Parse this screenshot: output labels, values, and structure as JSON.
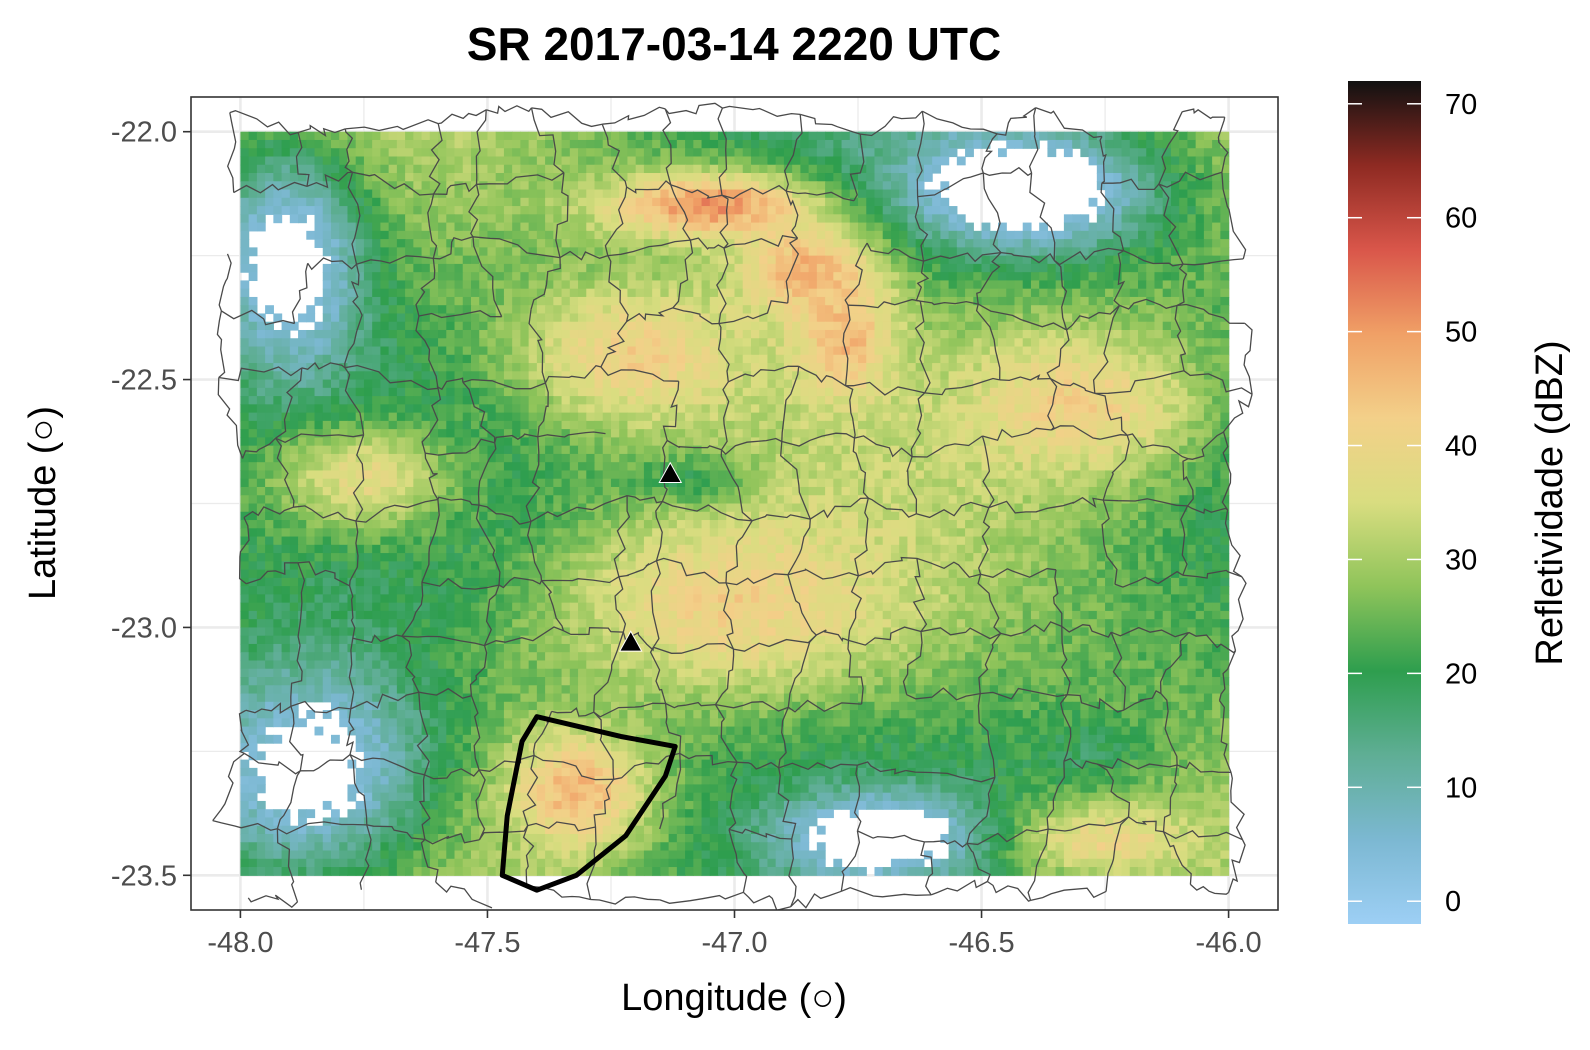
{
  "chart_data": {
    "type": "heatmap",
    "title": "SR 2017-03-14 2220 UTC",
    "xlabel": "Longitude (○)",
    "ylabel": "Latitude (○)",
    "xlim": [
      -48.1,
      -45.9
    ],
    "ylim": [
      -23.57,
      -21.93
    ],
    "x_ticks": [
      -48.0,
      -47.5,
      -47.0,
      -46.5,
      -46.0
    ],
    "x_tick_labels": [
      "-48.0",
      "-47.5",
      "-47.0",
      "-46.5",
      "-46.0"
    ],
    "y_ticks": [
      -22.0,
      -22.5,
      -23.0,
      -23.5
    ],
    "y_tick_labels": [
      "-22.0",
      "-22.5",
      "-23.0",
      "-23.5"
    ],
    "grid": true,
    "legend": {
      "title": "Refletividade (dBZ)",
      "position": "right",
      "range": [
        -2,
        72
      ],
      "ticks": [
        0,
        10,
        20,
        30,
        40,
        50,
        60,
        70
      ],
      "tick_labels": [
        "0",
        "10",
        "20",
        "30",
        "40",
        "50",
        "60",
        "70"
      ],
      "colors": [
        "#9dcff5",
        "#7cb8d2",
        "#5fae95",
        "#2e9e4e",
        "#8fc45a",
        "#d9dd80",
        "#f3d089",
        "#f0a066",
        "#d9564a",
        "#8e2a22",
        "#111111"
      ]
    },
    "radar_extent": {
      "lon": [
        -48.0,
        -46.0
      ],
      "lat": [
        -23.5,
        -22.0
      ]
    },
    "storm_cells": [
      {
        "lon": -47.05,
        "lat": -22.15,
        "dbz": 52,
        "rx": 0.22,
        "ry": 0.07
      },
      {
        "lon": -46.85,
        "lat": -22.28,
        "dbz": 48,
        "rx": 0.15,
        "ry": 0.1
      },
      {
        "lon": -46.78,
        "lat": -22.42,
        "dbz": 47,
        "rx": 0.1,
        "ry": 0.12
      },
      {
        "lon": -47.32,
        "lat": -23.33,
        "dbz": 47,
        "rx": 0.14,
        "ry": 0.12
      },
      {
        "lon": -47.2,
        "lat": -22.45,
        "dbz": 42,
        "rx": 0.25,
        "ry": 0.15
      },
      {
        "lon": -47.0,
        "lat": -22.95,
        "dbz": 42,
        "rx": 0.35,
        "ry": 0.18
      },
      {
        "lon": -46.3,
        "lat": -22.55,
        "dbz": 42,
        "rx": 0.25,
        "ry": 0.15
      },
      {
        "lon": -46.25,
        "lat": -23.43,
        "dbz": 40,
        "rx": 0.2,
        "ry": 0.08
      },
      {
        "lon": -47.75,
        "lat": -22.7,
        "dbz": 38,
        "rx": 0.2,
        "ry": 0.12
      },
      {
        "lon": -47.1,
        "lat": -22.7,
        "dbz": 20,
        "rx": 0.12,
        "ry": 0.05
      },
      {
        "lon": -46.28,
        "lat": -23.25,
        "dbz": 18,
        "rx": 0.1,
        "ry": 0.06
      }
    ],
    "markers": [
      {
        "shape": "triangle",
        "lon": -47.13,
        "lat": -22.69
      },
      {
        "shape": "triangle",
        "lon": -47.21,
        "lat": -23.03
      }
    ],
    "outline": {
      "points": [
        [
          -47.4,
          -23.18
        ],
        [
          -47.23,
          -23.22
        ],
        [
          -47.12,
          -23.24
        ],
        [
          -47.14,
          -23.3
        ],
        [
          -47.22,
          -23.42
        ],
        [
          -47.32,
          -23.5
        ],
        [
          -47.4,
          -23.53
        ],
        [
          -47.47,
          -23.5
        ],
        [
          -47.46,
          -23.38
        ],
        [
          -47.43,
          -23.23
        ]
      ]
    }
  }
}
